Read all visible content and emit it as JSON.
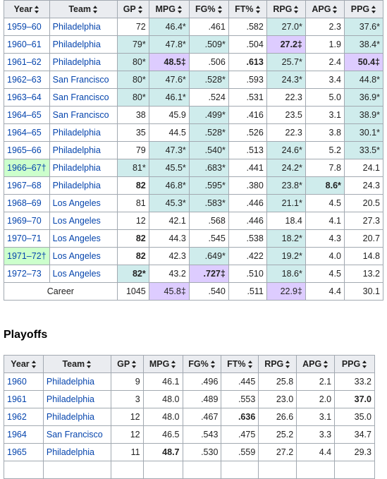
{
  "columns": [
    "Year",
    "Team",
    "GP",
    "MPG",
    "FG%",
    "FT%",
    "RPG",
    "APG",
    "PPG"
  ],
  "regular_season": {
    "rows": [
      {
        "year": "1959–60",
        "team": "Philadelphia",
        "gp": "72",
        "mpg": "46.4*",
        "fg": ".461",
        "ft": ".582",
        "rpg": "27.0*",
        "apg": "2.3",
        "ppg": "37.6*"
      },
      {
        "year": "1960–61",
        "team": "Philadelphia",
        "gp": "79*",
        "mpg": "47.8*",
        "fg": ".509*",
        "ft": ".504",
        "rpg": "27.2‡",
        "apg": "1.9",
        "ppg": "38.4*"
      },
      {
        "year": "1961–62",
        "team": "Philadelphia",
        "gp": "80*",
        "mpg": "48.5‡",
        "fg": ".506",
        "ft": ".613",
        "rpg": "25.7*",
        "apg": "2.4",
        "ppg": "50.4‡"
      },
      {
        "year": "1962–63",
        "team": "San Francisco",
        "gp": "80*",
        "mpg": "47.6*",
        "fg": ".528*",
        "ft": ".593",
        "rpg": "24.3*",
        "apg": "3.4",
        "ppg": "44.8*"
      },
      {
        "year": "1963–64",
        "team": "San Francisco",
        "gp": "80*",
        "mpg": "46.1*",
        "fg": ".524",
        "ft": ".531",
        "rpg": "22.3",
        "apg": "5.0",
        "ppg": "36.9*"
      },
      {
        "year": "1964–65",
        "team": "San Francisco",
        "gp": "38",
        "mpg": "45.9",
        "fg": ".499*",
        "ft": ".416",
        "rpg": "23.5",
        "apg": "3.1",
        "ppg": "38.9*"
      },
      {
        "year": "1964–65",
        "team": "Philadelphia",
        "gp": "35",
        "mpg": "44.5",
        "fg": ".528*",
        "ft": ".526",
        "rpg": "22.3",
        "apg": "3.8",
        "ppg": "30.1*"
      },
      {
        "year": "1965–66",
        "team": "Philadelphia",
        "gp": "79",
        "mpg": "47.3*",
        "fg": ".540*",
        "ft": ".513",
        "rpg": "24.6*",
        "apg": "5.2",
        "ppg": "33.5*"
      },
      {
        "year": "1966–67†",
        "team": "Philadelphia",
        "gp": "81*",
        "mpg": "45.5*",
        "fg": ".683*",
        "ft": ".441",
        "rpg": "24.2*",
        "apg": "7.8",
        "ppg": "24.1"
      },
      {
        "year": "1967–68",
        "team": "Philadelphia",
        "gp": "82",
        "mpg": "46.8*",
        "fg": ".595*",
        "ft": ".380",
        "rpg": "23.8*",
        "apg": "8.6*",
        "ppg": "24.3"
      },
      {
        "year": "1968–69",
        "team": "Los Angeles",
        "gp": "81",
        "mpg": "45.3*",
        "fg": ".583*",
        "ft": ".446",
        "rpg": "21.1*",
        "apg": "4.5",
        "ppg": "20.5"
      },
      {
        "year": "1969–70",
        "team": "Los Angeles",
        "gp": "12",
        "mpg": "42.1",
        "fg": ".568",
        "ft": ".446",
        "rpg": "18.4",
        "apg": "4.1",
        "ppg": "27.3"
      },
      {
        "year": "1970–71",
        "team": "Los Angeles",
        "gp": "82",
        "mpg": "44.3",
        "fg": ".545",
        "ft": ".538",
        "rpg": "18.2*",
        "apg": "4.3",
        "ppg": "20.7"
      },
      {
        "year": "1971–72†",
        "team": "Los Angeles",
        "gp": "82",
        "mpg": "42.3",
        "fg": ".649*",
        "ft": ".422",
        "rpg": "19.2*",
        "apg": "4.0",
        "ppg": "14.8"
      },
      {
        "year": "1972–73",
        "team": "Los Angeles",
        "gp": "82*",
        "mpg": "43.2",
        "fg": ".727‡",
        "ft": ".510",
        "rpg": "18.6*",
        "apg": "4.5",
        "ppg": "13.2"
      }
    ],
    "career": {
      "label": "Career",
      "gp": "1045",
      "mpg": "45.8‡",
      "fg": ".540",
      "ft": ".511",
      "rpg": "22.9‡",
      "apg": "4.4",
      "ppg": "30.1"
    }
  },
  "playoffs": {
    "heading": "Playoffs",
    "rows": [
      {
        "year": "1960",
        "team": "Philadelphia",
        "gp": "9",
        "mpg": "46.1",
        "fg": ".496",
        "ft": ".445",
        "rpg": "25.8",
        "apg": "2.1",
        "ppg": "33.2"
      },
      {
        "year": "1961",
        "team": "Philadelphia",
        "gp": "3",
        "mpg": "48.0",
        "fg": ".489",
        "ft": ".553",
        "rpg": "23.0",
        "apg": "2.0",
        "ppg": "37.0"
      },
      {
        "year": "1962",
        "team": "Philadelphia",
        "gp": "12",
        "mpg": "48.0",
        "fg": ".467",
        "ft": ".636",
        "rpg": "26.6",
        "apg": "3.1",
        "ppg": "35.0"
      },
      {
        "year": "1964",
        "team": "San Francisco",
        "gp": "12",
        "mpg": "46.5",
        "fg": ".543",
        "ft": ".475",
        "rpg": "25.2",
        "apg": "3.3",
        "ppg": "34.7"
      },
      {
        "year": "1965",
        "team": "Philadelphia",
        "gp": "11",
        "mpg": "48.7",
        "fg": ".530",
        "ft": ".559",
        "rpg": "27.2",
        "apg": "4.4",
        "ppg": "29.3"
      }
    ]
  },
  "colors": {
    "league_lead": "#cfecec",
    "record": "#ddccff",
    "champion": "#ccffcc",
    "header": "#eaecf0",
    "link": "#0645ad"
  }
}
